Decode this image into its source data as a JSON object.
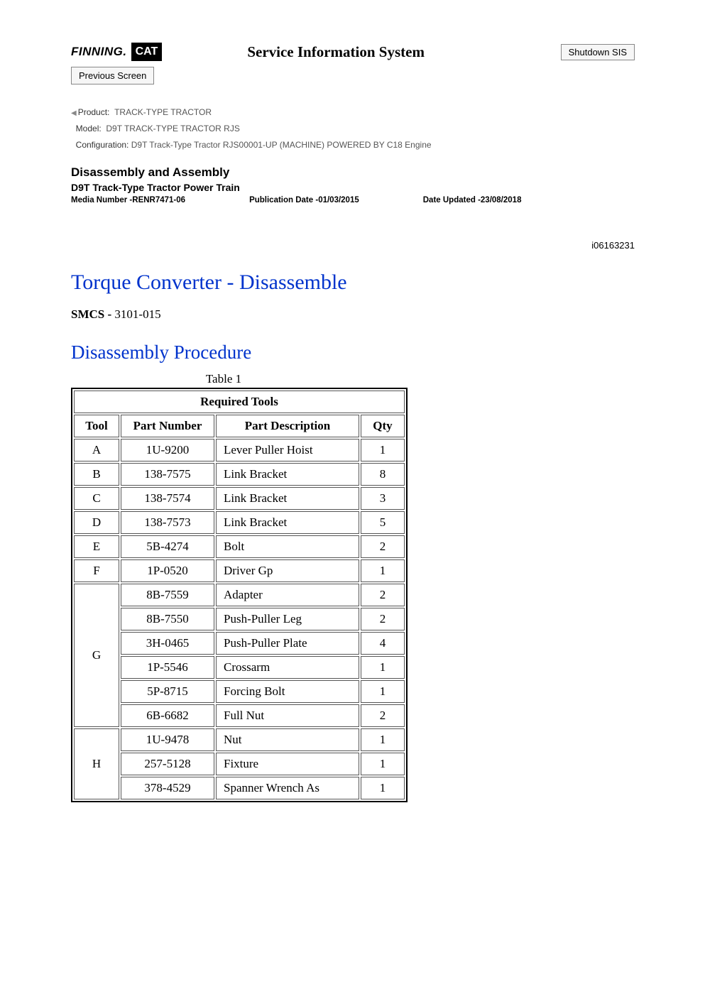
{
  "header": {
    "logo_finning": "FINNING.",
    "logo_cat": "CAT",
    "sis_title": "Service Information System",
    "shutdown_label": "Shutdown SIS",
    "prev_label": "Previous Screen"
  },
  "meta": {
    "product_label": "Product:",
    "product_value": "TRACK-TYPE TRACTOR",
    "model_label": "Model:",
    "model_value": "D9T TRACK-TYPE TRACTOR RJS",
    "config_label": "Configuration:",
    "config_value": "D9T Track-Type Tractor RJS00001-UP (MACHINE) POWERED BY C18 Engine"
  },
  "section": {
    "da_title": "Disassembly and Assembly",
    "da_sub": "D9T Track-Type Tractor Power Train",
    "media_label": "Media Number -",
    "media_value": "RENR7471-06",
    "pub_label": "Publication Date -",
    "pub_value": "01/03/2015",
    "upd_label": "Date Updated -",
    "upd_value": "23/08/2018"
  },
  "doc_id": "i06163231",
  "main_title": "Torque Converter - Disassemble",
  "smcs_label": "SMCS - ",
  "smcs_value": "3101-015",
  "proc_title": "Disassembly Procedure",
  "table": {
    "caption": "Table 1",
    "header_span": "Required Tools",
    "cols": [
      "Tool",
      "Part Number",
      "Part Description",
      "Qty"
    ],
    "groups": [
      {
        "tool": "A",
        "rows": [
          {
            "pn": "1U-9200",
            "desc": "Lever Puller Hoist",
            "qty": "1"
          }
        ]
      },
      {
        "tool": "B",
        "rows": [
          {
            "pn": "138-7575",
            "desc": "Link Bracket",
            "qty": "8"
          }
        ]
      },
      {
        "tool": "C",
        "rows": [
          {
            "pn": "138-7574",
            "desc": "Link Bracket",
            "qty": "3"
          }
        ]
      },
      {
        "tool": "D",
        "rows": [
          {
            "pn": "138-7573",
            "desc": "Link Bracket",
            "qty": "5"
          }
        ]
      },
      {
        "tool": "E",
        "rows": [
          {
            "pn": "5B-4274",
            "desc": "Bolt",
            "qty": "2"
          }
        ]
      },
      {
        "tool": "F",
        "rows": [
          {
            "pn": "1P-0520",
            "desc": "Driver Gp",
            "qty": "1"
          }
        ]
      },
      {
        "tool": "G",
        "rows": [
          {
            "pn": "8B-7559",
            "desc": "Adapter",
            "qty": "2"
          },
          {
            "pn": "8B-7550",
            "desc": "Push-Puller Leg",
            "qty": "2"
          },
          {
            "pn": "3H-0465",
            "desc": "Push-Puller Plate",
            "qty": "4"
          },
          {
            "pn": "1P-5546",
            "desc": "Crossarm",
            "qty": "1"
          },
          {
            "pn": "5P-8715",
            "desc": "Forcing Bolt",
            "qty": "1"
          },
          {
            "pn": "6B-6682",
            "desc": "Full Nut",
            "qty": "2"
          }
        ]
      },
      {
        "tool": "H",
        "rows": [
          {
            "pn": "1U-9478",
            "desc": "Nut",
            "qty": "1"
          },
          {
            "pn": "257-5128",
            "desc": "Fixture",
            "qty": "1"
          },
          {
            "pn": "378-4529",
            "desc": "Spanner Wrench As",
            "qty": "1"
          }
        ]
      }
    ]
  },
  "style": {
    "heading_color": "#0033cc",
    "text_color": "#000000",
    "meta_color": "#555555",
    "border_color": "#000000",
    "cell_border_color": "#555555",
    "button_bg": "#f6f6f6",
    "button_border": "#888888",
    "body_font": "Verdana",
    "serif_font": "Times New Roman",
    "h1_size_pt": 22,
    "h2_size_pt": 20,
    "body_size_pt": 10,
    "table_size_pt": 13
  }
}
